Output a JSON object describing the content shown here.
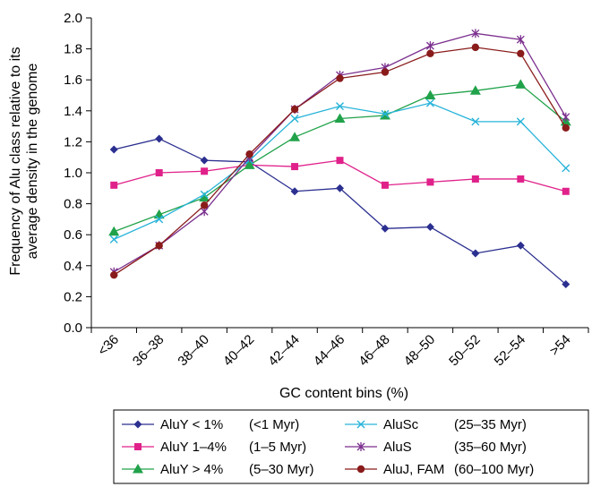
{
  "chart_data": {
    "type": "line",
    "title": "",
    "xlabel": "GC content bins (%)",
    "ylabel_line1": "Frequency of Alu class relative to its",
    "ylabel_line2": "average density in the genome",
    "categories": [
      "<36",
      "36–38",
      "38–40",
      "40–42",
      "42–44",
      "44–46",
      "46–48",
      "48–50",
      "50–52",
      "52–54",
      ">54"
    ],
    "ylim": [
      0,
      2.0
    ],
    "yticks": [
      "0.0",
      "0.2",
      "0.4",
      "0.6",
      "0.8",
      "1.0",
      "1.2",
      "1.4",
      "1.6",
      "1.8",
      "2.0"
    ],
    "grid": false,
    "legend_position": "bottom",
    "series": [
      {
        "name": "AluY < 1%",
        "period": "(<1 Myr)",
        "color": "#2b2f8f",
        "marker": "diamond",
        "values": [
          1.15,
          1.22,
          1.08,
          1.07,
          0.88,
          0.9,
          0.64,
          0.65,
          0.48,
          0.53,
          0.28
        ]
      },
      {
        "name": "AluY 1–4%",
        "period": "(1–5 Myr)",
        "color": "#e0218a",
        "marker": "square",
        "values": [
          0.92,
          1.0,
          1.01,
          1.05,
          1.04,
          1.08,
          0.92,
          0.94,
          0.96,
          0.96,
          0.88
        ]
      },
      {
        "name": "AluY > 4%",
        "period": "(5–30 Myr)",
        "color": "#21a24a",
        "marker": "triangle",
        "values": [
          0.62,
          0.73,
          0.84,
          1.05,
          1.23,
          1.35,
          1.37,
          1.5,
          1.53,
          1.57,
          1.33
        ]
      },
      {
        "name": "AluSc",
        "period": "(25–35 Myr)",
        "color": "#27b3d9",
        "marker": "x",
        "values": [
          0.57,
          0.7,
          0.86,
          1.08,
          1.35,
          1.43,
          1.38,
          1.45,
          1.33,
          1.33,
          1.03
        ]
      },
      {
        "name": "AluS",
        "period": "(35–60 Myr)",
        "color": "#7b2f8e",
        "marker": "star",
        "values": [
          0.36,
          0.53,
          0.75,
          1.1,
          1.41,
          1.63,
          1.68,
          1.82,
          1.9,
          1.86,
          1.36
        ]
      },
      {
        "name": "AluJ, FAM",
        "period": "(60–100 Myr)",
        "color": "#8a1b1b",
        "marker": "circle",
        "values": [
          0.34,
          0.53,
          0.79,
          1.12,
          1.41,
          1.61,
          1.65,
          1.77,
          1.81,
          1.77,
          1.29
        ]
      }
    ]
  }
}
